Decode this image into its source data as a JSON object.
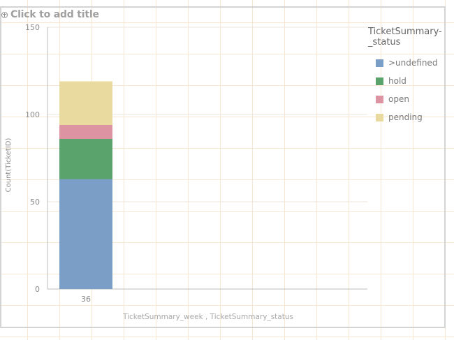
{
  "title": {
    "placeholder": "Click to add title",
    "icon": "add-circle-icon"
  },
  "chart_data": {
    "type": "bar",
    "stacked": true,
    "categories": [
      "36"
    ],
    "series": [
      {
        "name": ">undefined",
        "values": [
          63
        ],
        "color": "#7b9ec7"
      },
      {
        "name": "hold",
        "values": [
          23
        ],
        "color": "#5aa36c"
      },
      {
        "name": "open",
        "values": [
          8
        ],
        "color": "#dd93a1"
      },
      {
        "name": "pending",
        "values": [
          25
        ],
        "color": "#e9da9f"
      }
    ],
    "title": "",
    "xlabel": "TicketSummary_week , TicketSummary_status",
    "ylabel": "Count(TicketID)",
    "ylim": [
      0,
      150
    ],
    "yticks": [
      0,
      50,
      100,
      150
    ],
    "grid": true,
    "legend": {
      "title": "TicketSummary-_status",
      "title_lines": [
        "TicketSummary-",
        "_status"
      ],
      "position": "right"
    }
  }
}
